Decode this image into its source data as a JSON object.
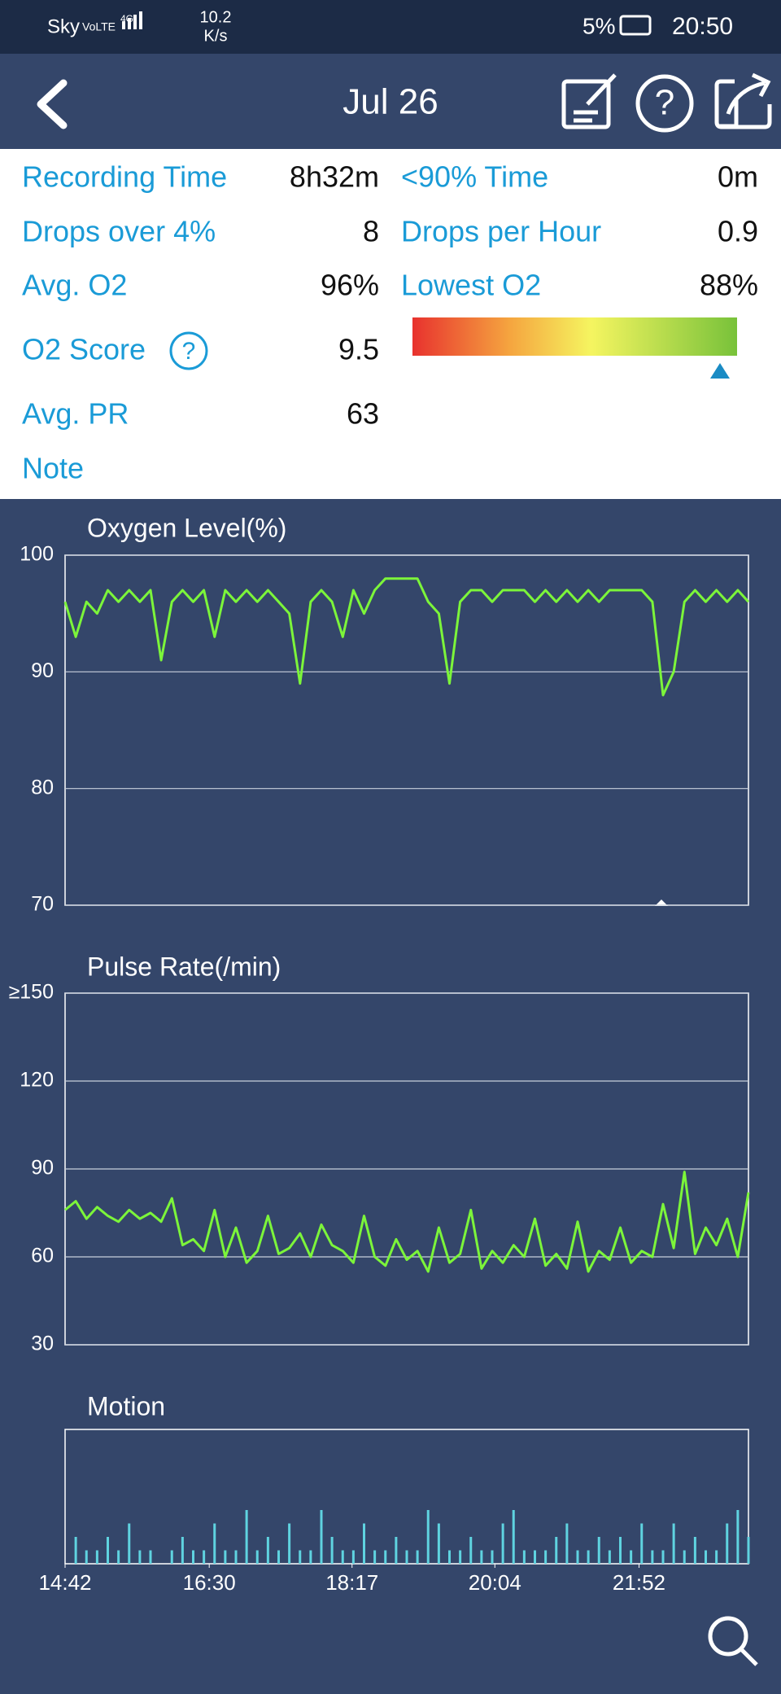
{
  "status_bar": {
    "carrier": "Sky",
    "volte": "VoLTE",
    "network": "4G",
    "speed": "10.2",
    "speed_unit": "K/s",
    "battery": "5%",
    "time": "20:50"
  },
  "header": {
    "title": "Jul 26"
  },
  "help_icon": "?",
  "stats": {
    "left": [
      {
        "label": "Recording Time",
        "value": "8h32m"
      },
      {
        "label": "Drops over 4%",
        "value": 8
      },
      {
        "label": "Avg. O2",
        "value": "96%"
      },
      {
        "label": "O2 Score",
        "value": 9.5
      },
      {
        "label": "Avg. PR",
        "value": 63
      },
      {
        "label": "Note"
      }
    ],
    "right": [
      {
        "label": "<90% Time",
        "value": "0m"
      },
      {
        "label": "Drops per Hour",
        "value": 0.9
      },
      {
        "label": "Lowest O2",
        "value": "88%"
      }
    ]
  },
  "x_axis": {
    "xlim": [
      882,
      1394
    ],
    "xticks": [
      {
        "value": 882,
        "label": "14:42"
      },
      {
        "value": 990,
        "label": "16:30"
      },
      {
        "value": 1097,
        "label": "18:17"
      },
      {
        "value": 1204,
        "label": "20:04"
      },
      {
        "value": 1312,
        "label": "21:52"
      }
    ],
    "x": [
      882,
      890,
      898,
      906,
      914,
      922,
      930,
      938,
      946,
      954,
      962,
      970,
      978,
      986,
      994,
      1002,
      1010,
      1018,
      1026,
      1034,
      1042,
      1050,
      1058,
      1066,
      1074,
      1082,
      1090,
      1098,
      1106,
      1114,
      1122,
      1130,
      1138,
      1146,
      1154,
      1162,
      1170,
      1178,
      1186,
      1194,
      1202,
      1210,
      1218,
      1226,
      1234,
      1242,
      1250,
      1258,
      1266,
      1274,
      1282,
      1290,
      1298,
      1306,
      1314,
      1322,
      1330,
      1338,
      1346,
      1354,
      1362,
      1370,
      1378,
      1386,
      1394
    ]
  },
  "charts": [
    {
      "type": "line",
      "title": "Oxygen Level(%)",
      "color": "#7cf53a",
      "ylim": [
        70,
        100
      ],
      "yticks": [
        70,
        80,
        90,
        100
      ],
      "grid": true,
      "values": [
        96,
        93,
        96,
        95,
        97,
        96,
        97,
        96,
        97,
        91,
        96,
        97,
        96,
        97,
        93,
        97,
        96,
        97,
        96,
        97,
        96,
        95,
        89,
        96,
        97,
        96,
        93,
        97,
        95,
        97,
        98,
        98,
        98,
        98,
        96,
        95,
        89,
        96,
        97,
        97,
        96,
        97,
        97,
        97,
        96,
        97,
        96,
        97,
        96,
        97,
        96,
        97,
        97,
        97,
        97,
        96,
        88,
        90,
        96,
        97,
        96,
        97,
        96,
        97,
        96
      ]
    },
    {
      "type": "line",
      "title": "Pulse Rate(/min)",
      "color": "#7cf53a",
      "ylim": [
        30,
        150
      ],
      "yticks": [
        30,
        60,
        90,
        120,
        {
          "value": 150,
          "label": "≥150"
        }
      ],
      "grid": true,
      "values": [
        76,
        79,
        73,
        77,
        74,
        72,
        76,
        73,
        75,
        72,
        80,
        64,
        66,
        62,
        76,
        60,
        70,
        58,
        62,
        74,
        61,
        63,
        68,
        60,
        71,
        64,
        62,
        58,
        74,
        60,
        57,
        66,
        59,
        62,
        55,
        70,
        58,
        61,
        76,
        56,
        62,
        58,
        64,
        60,
        73,
        57,
        61,
        56,
        72,
        55,
        62,
        59,
        70,
        58,
        62,
        60,
        78,
        63,
        89,
        61,
        70,
        64,
        73,
        60,
        82
      ]
    },
    {
      "type": "bar",
      "title": "Motion",
      "color": "#5fd3e0",
      "ylim": [
        0,
        10
      ],
      "values": [
        0,
        2,
        1,
        1,
        2,
        1,
        3,
        1,
        1,
        0,
        1,
        2,
        1,
        1,
        3,
        1,
        1,
        4,
        1,
        2,
        1,
        3,
        1,
        1,
        4,
        2,
        1,
        1,
        3,
        1,
        1,
        2,
        1,
        1,
        4,
        3,
        1,
        1,
        2,
        1,
        1,
        3,
        4,
        1,
        1,
        1,
        2,
        3,
        1,
        1,
        2,
        1,
        2,
        1,
        3,
        1,
        1,
        3,
        1,
        2,
        1,
        1,
        3,
        4,
        2
      ]
    }
  ]
}
